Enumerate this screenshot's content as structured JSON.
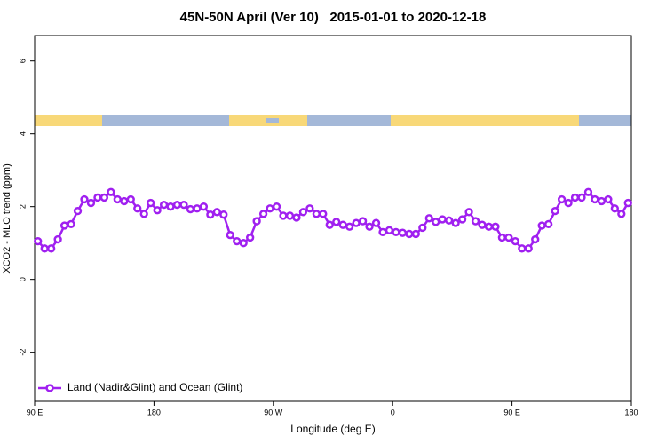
{
  "chart_data": {
    "type": "line",
    "title": "45N-50N April (Ver 10)   2015-01-01 to 2020-12-18",
    "x_label": "Longitude (deg E)",
    "y_label": "XCO2 - MLO trend (ppm)",
    "x": [
      92.5,
      97.5,
      102.5,
      107.5,
      112.5,
      117.5,
      122.5,
      127.5,
      132.5,
      137.5,
      142.5,
      147.5,
      152.5,
      157.5,
      162.5,
      167.5,
      172.5,
      177.5,
      182.5,
      187.5,
      192.5,
      197.5,
      202.5,
      207.5,
      212.5,
      217.5,
      222.5,
      227.5,
      232.5,
      237.5,
      242.5,
      247.5,
      252.5,
      257.5,
      262.5,
      267.5,
      272.5,
      277.5,
      282.5,
      287.5,
      292.5,
      297.5,
      302.5,
      307.5,
      312.5,
      317.5,
      322.5,
      327.5,
      332.5,
      337.5,
      342.5,
      347.5,
      352.5,
      357.5,
      362.5,
      367.5,
      372.5,
      377.5,
      382.5,
      387.5,
      392.5,
      397.5,
      402.5,
      407.5,
      412.5,
      417.5,
      422.5,
      427.5,
      432.5,
      437.5,
      442.5,
      447.5,
      452.5,
      457.5,
      462.5,
      467.5,
      472.5,
      477.5,
      482.5,
      487.5,
      492.5,
      497.5,
      502.5,
      507.5,
      512.5,
      517.5,
      522.5,
      527.5,
      532.5,
      537.5
    ],
    "series": [
      {
        "name": "Land (Nadir&Glint) and Ocean (Glint)",
        "color": "#a020f0",
        "values": [
          1.05,
          0.85,
          0.85,
          1.1,
          1.48,
          1.52,
          1.88,
          2.2,
          2.1,
          2.25,
          2.25,
          2.4,
          2.2,
          2.15,
          2.2,
          1.95,
          1.8,
          2.1,
          1.9,
          2.05,
          2.0,
          2.05,
          2.05,
          1.93,
          1.95,
          2.0,
          1.78,
          1.85,
          1.78,
          1.22,
          1.05,
          1.0,
          1.15,
          1.6,
          1.8,
          1.95,
          2.0,
          1.75,
          1.75,
          1.7,
          1.85,
          1.95,
          1.8,
          1.8,
          1.5,
          1.58,
          1.5,
          1.45,
          1.55,
          1.6,
          1.45,
          1.55,
          1.3,
          1.35,
          1.3,
          1.28,
          1.25,
          1.25,
          1.42,
          1.68,
          1.58,
          1.65,
          1.62,
          1.55,
          1.65,
          1.85,
          1.6,
          1.5,
          1.45,
          1.45,
          1.15,
          1.15,
          1.05,
          0.85,
          0.85,
          1.1,
          1.48,
          1.52,
          1.88,
          2.2,
          2.1,
          2.25,
          2.25,
          2.4,
          2.2,
          2.15,
          2.2,
          1.95,
          1.8,
          2.1
        ]
      }
    ],
    "xlim": [
      90,
      540
    ],
    "xticks": [
      {
        "value": 90,
        "label": "90 E"
      },
      180,
      {
        "value": 270,
        "label": "90 W"
      },
      {
        "value": 360,
        "label": "0"
      },
      {
        "value": 450,
        "label": "90 E"
      },
      {
        "value": 540,
        "label": "180"
      }
    ],
    "ylim": [
      -3.35,
      6.7
    ],
    "yticks": [
      -2,
      0,
      2,
      4,
      6
    ],
    "legend": "bottom-left"
  }
}
